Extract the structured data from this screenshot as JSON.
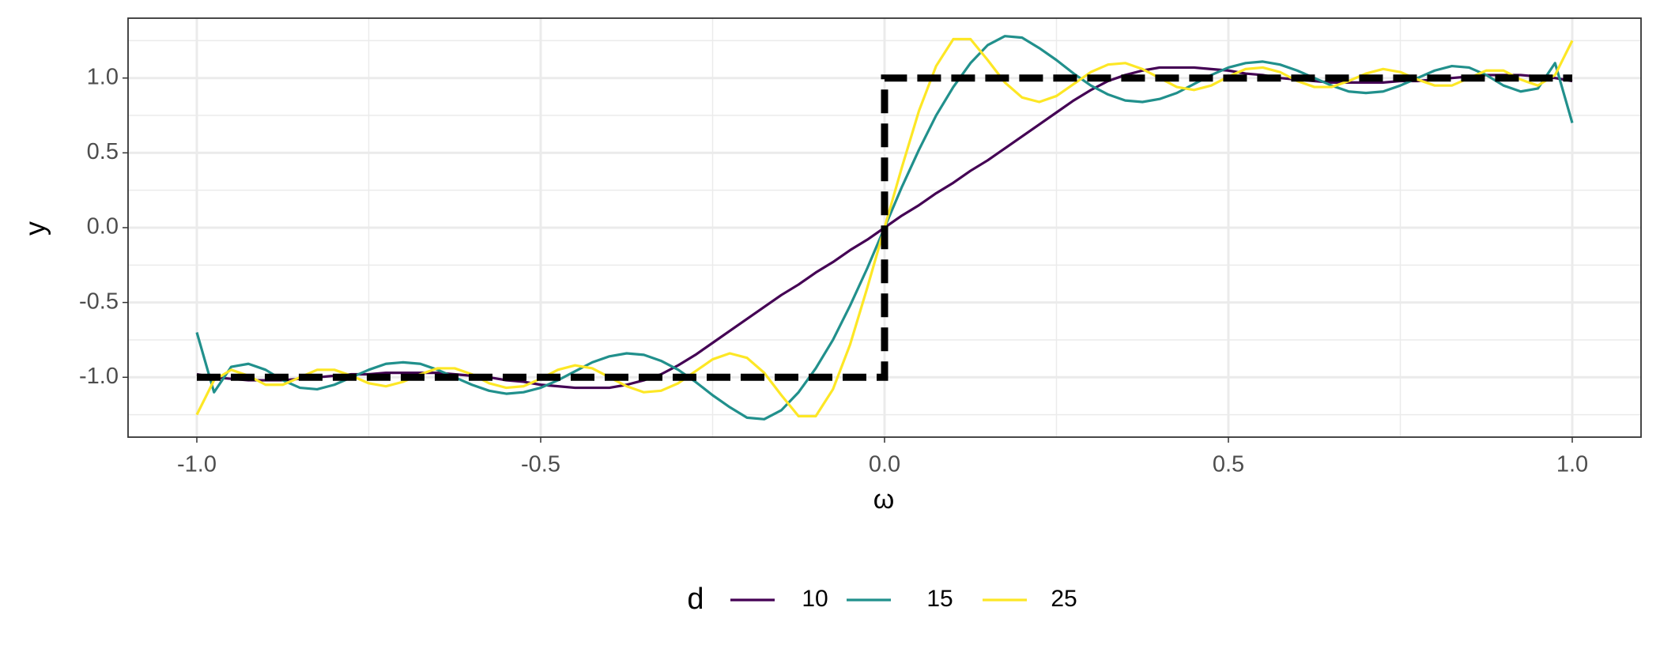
{
  "chart_data": {
    "type": "line",
    "x_label": "ω",
    "y_label": "y",
    "x": [
      -1,
      -0.975,
      -0.95,
      -0.925,
      -0.9,
      -0.875,
      -0.85,
      -0.825,
      -0.8,
      -0.775,
      -0.75,
      -0.725,
      -0.7,
      -0.675,
      -0.65,
      -0.625,
      -0.6,
      -0.575,
      -0.55,
      -0.525,
      -0.5,
      -0.475,
      -0.45,
      -0.425,
      -0.4,
      -0.375,
      -0.35,
      -0.325,
      -0.3,
      -0.275,
      -0.25,
      -0.225,
      -0.2,
      -0.175,
      -0.15,
      -0.125,
      -0.1,
      -0.075,
      -0.05,
      -0.025,
      0,
      0.025,
      0.05,
      0.075,
      0.1,
      0.125,
      0.15,
      0.175,
      0.2,
      0.225,
      0.25,
      0.275,
      0.3,
      0.325,
      0.35,
      0.375,
      0.4,
      0.425,
      0.45,
      0.475,
      0.5,
      0.525,
      0.55,
      0.575,
      0.6,
      0.625,
      0.65,
      0.675,
      0.7,
      0.725,
      0.75,
      0.775,
      0.8,
      0.825,
      0.85,
      0.875,
      0.9,
      0.925,
      0.95,
      0.975,
      1
    ],
    "series": [
      {
        "name": "10",
        "color": "#440154",
        "values": [
          -0.98,
          -1.0,
          -1.01,
          -1.02,
          -1.02,
          -1.02,
          -1.01,
          -1.0,
          -0.99,
          -0.98,
          -0.98,
          -0.97,
          -0.97,
          -0.97,
          -0.97,
          -0.98,
          -0.99,
          -1.0,
          -1.02,
          -1.03,
          -1.05,
          -1.06,
          -1.07,
          -1.07,
          -1.07,
          -1.05,
          -1.02,
          -0.98,
          -0.92,
          -0.85,
          -0.77,
          -0.69,
          -0.61,
          -0.53,
          -0.45,
          -0.38,
          -0.3,
          -0.23,
          -0.15,
          -0.08,
          0,
          0.08,
          0.15,
          0.23,
          0.3,
          0.38,
          0.45,
          0.53,
          0.61,
          0.69,
          0.77,
          0.85,
          0.92,
          0.98,
          1.02,
          1.05,
          1.07,
          1.07,
          1.07,
          1.06,
          1.05,
          1.03,
          1.02,
          1.0,
          0.99,
          0.98,
          0.97,
          0.97,
          0.97,
          0.97,
          0.98,
          0.98,
          0.99,
          1.0,
          1.01,
          1.02,
          1.02,
          1.02,
          1.01,
          1.0,
          0.98
        ]
      },
      {
        "name": "15",
        "color": "#21908C",
        "values": [
          -0.7,
          -1.1,
          -0.93,
          -0.91,
          -0.95,
          -1.02,
          -1.07,
          -1.08,
          -1.05,
          -1.0,
          -0.95,
          -0.91,
          -0.9,
          -0.91,
          -0.95,
          -1.0,
          -1.05,
          -1.09,
          -1.11,
          -1.1,
          -1.07,
          -1.02,
          -0.96,
          -0.9,
          -0.86,
          -0.84,
          -0.85,
          -0.89,
          -0.95,
          -1.03,
          -1.12,
          -1.2,
          -1.27,
          -1.28,
          -1.22,
          -1.1,
          -0.94,
          -0.75,
          -0.52,
          -0.27,
          0,
          0.27,
          0.52,
          0.75,
          0.94,
          1.1,
          1.22,
          1.28,
          1.27,
          1.2,
          1.12,
          1.03,
          0.95,
          0.89,
          0.85,
          0.84,
          0.86,
          0.9,
          0.96,
          1.02,
          1.07,
          1.1,
          1.11,
          1.09,
          1.05,
          1.0,
          0.95,
          0.91,
          0.9,
          0.91,
          0.95,
          1.0,
          1.05,
          1.08,
          1.07,
          1.02,
          0.95,
          0.91,
          0.93,
          1.1,
          0.7
        ]
      },
      {
        "name": "25",
        "color": "#FDE725",
        "values": [
          -1.25,
          -1.02,
          -0.95,
          -0.99,
          -1.05,
          -1.05,
          -1.0,
          -0.95,
          -0.95,
          -0.99,
          -1.04,
          -1.06,
          -1.03,
          -0.98,
          -0.94,
          -0.94,
          -0.98,
          -1.04,
          -1.07,
          -1.06,
          -1.01,
          -0.95,
          -0.92,
          -0.94,
          -1.0,
          -1.06,
          -1.1,
          -1.09,
          -1.04,
          -0.96,
          -0.88,
          -0.84,
          -0.87,
          -0.97,
          -1.12,
          -1.26,
          -1.26,
          -1.08,
          -0.78,
          -0.4,
          0,
          0.4,
          0.78,
          1.08,
          1.26,
          1.26,
          1.12,
          0.97,
          0.87,
          0.84,
          0.88,
          0.96,
          1.04,
          1.09,
          1.1,
          1.06,
          1.0,
          0.94,
          0.92,
          0.95,
          1.01,
          1.06,
          1.07,
          1.04,
          0.98,
          0.94,
          0.94,
          0.98,
          1.03,
          1.06,
          1.04,
          0.99,
          0.95,
          0.95,
          1.0,
          1.05,
          1.05,
          0.99,
          0.95,
          1.02,
          1.25
        ]
      }
    ],
    "reference": {
      "x": [
        -1,
        0,
        0,
        1
      ],
      "values": [
        -1,
        -1,
        1,
        1
      ],
      "color": "#000000",
      "dashed": true
    },
    "legend_title": "d",
    "legend": "bottom",
    "xlim": [
      -1.1,
      1.1
    ],
    "ylim": [
      -1.4,
      1.4
    ],
    "xticks": [
      {
        "value": -1,
        "label": "-1.0"
      },
      {
        "value": -0.5,
        "label": "-0.5"
      },
      {
        "value": 0,
        "label": "0.0"
      },
      {
        "value": 0.5,
        "label": "0.5"
      },
      {
        "value": 1,
        "label": "1.0"
      }
    ],
    "yticks": [
      {
        "value": -1,
        "label": "-1.0"
      },
      {
        "value": -0.5,
        "label": "-0.5"
      },
      {
        "value": 0,
        "label": "0.0"
      },
      {
        "value": 0.5,
        "label": "0.5"
      },
      {
        "value": 1,
        "label": "1.0"
      }
    ],
    "xminor": [
      -0.75,
      -0.25,
      0.25,
      0.75
    ],
    "yminor": [
      -1.25,
      -0.75,
      -0.25,
      0.25,
      0.75,
      1.25
    ],
    "grid": true
  }
}
